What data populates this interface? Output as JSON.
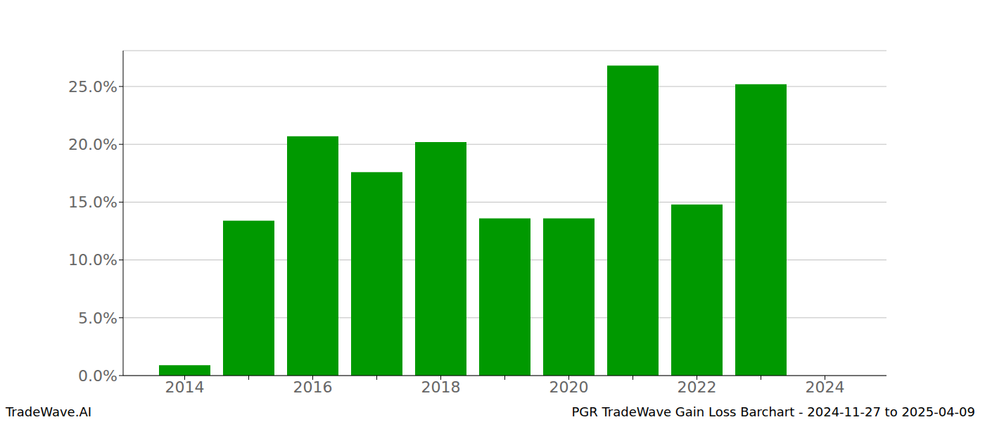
{
  "chart_data": {
    "type": "bar",
    "title": "PGR TradeWave Gain Loss Barchart - 2024-11-27 to 2025-04-09",
    "annotations": [
      "TradeWave.AI"
    ],
    "categories": [
      "2014",
      null,
      "2016",
      null,
      "2018",
      null,
      "2020",
      null,
      "2022",
      null,
      "2024"
    ],
    "values": [
      0.9,
      13.4,
      20.7,
      17.6,
      20.2,
      13.6,
      13.6,
      26.8,
      14.8,
      25.2,
      null
    ],
    "color": "#009900",
    "ylim": [
      0,
      28.1
    ],
    "yticks": [
      {
        "value": 0,
        "label": "0.0%"
      },
      {
        "value": 5,
        "label": "5.0%"
      },
      {
        "value": 10,
        "label": "10.0%"
      },
      {
        "value": 15,
        "label": "15.0%"
      },
      {
        "value": 20,
        "label": "20.0%"
      },
      {
        "value": 25,
        "label": "25.0%"
      }
    ],
    "grid": true
  }
}
